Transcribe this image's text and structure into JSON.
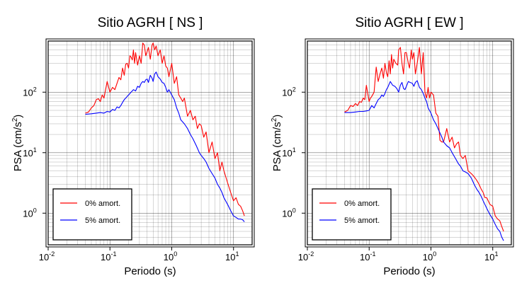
{
  "chart_data": [
    {
      "type": "line",
      "title": "Sitio AGRH [ NS ]",
      "xlabel": "Periodo (s)",
      "ylabel": "PSA (cm/s2)",
      "ylabel_main": "PSA (cm/s",
      "ylabel_sup": "2",
      "ylabel_close": ")",
      "xscale": "log",
      "yscale": "log",
      "xlim": [
        0.01,
        20
      ],
      "ylim": [
        0.3,
        700
      ],
      "xticks": [
        {
          "base": "10",
          "exp": "-2",
          "value": 0.01
        },
        {
          "base": "10",
          "exp": "-1",
          "value": 0.1
        },
        {
          "base": "10",
          "exp": "0",
          "value": 1
        },
        {
          "base": "10",
          "exp": "1",
          "value": 10
        }
      ],
      "yticks": [
        {
          "base": "10",
          "exp": "0",
          "value": 1
        },
        {
          "base": "10",
          "exp": "1",
          "value": 10
        },
        {
          "base": "10",
          "exp": "2",
          "value": 100
        }
      ],
      "grid": true,
      "legend_position": "bottom-left",
      "series": [
        {
          "name": "0% amort.",
          "color": "#ff0000",
          "x": [
            0.04,
            0.045,
            0.05,
            0.055,
            0.06,
            0.065,
            0.07,
            0.075,
            0.08,
            0.09,
            0.1,
            0.11,
            0.12,
            0.13,
            0.14,
            0.15,
            0.16,
            0.17,
            0.18,
            0.19,
            0.2,
            0.21,
            0.22,
            0.23,
            0.24,
            0.25,
            0.26,
            0.28,
            0.3,
            0.32,
            0.34,
            0.36,
            0.38,
            0.4,
            0.42,
            0.45,
            0.48,
            0.5,
            0.53,
            0.56,
            0.6,
            0.65,
            0.7,
            0.75,
            0.8,
            0.85,
            0.9,
            1.0,
            1.1,
            1.2,
            1.3,
            1.4,
            1.5,
            1.6,
            1.8,
            2.0,
            2.2,
            2.4,
            2.6,
            2.8,
            3.0,
            3.3,
            3.6,
            4.0,
            4.5,
            5.0,
            5.5,
            6.0,
            6.5,
            7.0,
            8.0,
            9.0,
            10.0,
            11.0,
            12.0,
            13.0,
            14.0,
            15.0
          ],
          "y": [
            45,
            47,
            55,
            60,
            75,
            78,
            70,
            90,
            80,
            150,
            100,
            120,
            110,
            140,
            175,
            160,
            250,
            190,
            290,
            300,
            250,
            400,
            380,
            340,
            500,
            300,
            450,
            280,
            400,
            300,
            650,
            600,
            400,
            470,
            550,
            350,
            600,
            650,
            500,
            580,
            400,
            500,
            300,
            400,
            270,
            250,
            180,
            300,
            140,
            180,
            90,
            80,
            70,
            80,
            40,
            50,
            35,
            40,
            25,
            30,
            28,
            18,
            22,
            10,
            15,
            8,
            10,
            5,
            7,
            5,
            3.2,
            2.2,
            1.6,
            1.8,
            1.4,
            1.3,
            1.1,
            0.9
          ]
        },
        {
          "name": "5% amort.",
          "color": "#0000ff",
          "x": [
            0.04,
            0.05,
            0.06,
            0.07,
            0.08,
            0.09,
            0.1,
            0.11,
            0.12,
            0.13,
            0.14,
            0.15,
            0.16,
            0.17,
            0.18,
            0.2,
            0.22,
            0.24,
            0.26,
            0.28,
            0.3,
            0.32,
            0.34,
            0.36,
            0.38,
            0.4,
            0.42,
            0.45,
            0.48,
            0.5,
            0.53,
            0.56,
            0.6,
            0.65,
            0.7,
            0.75,
            0.8,
            0.85,
            0.9,
            1.0,
            1.1,
            1.2,
            1.3,
            1.4,
            1.6,
            1.8,
            2.0,
            2.2,
            2.5,
            2.8,
            3.0,
            3.3,
            3.6,
            4.0,
            4.5,
            5.0,
            5.5,
            6.0,
            6.5,
            7.0,
            8.0,
            9.0,
            10.0,
            11.0,
            12.0,
            13.0,
            14.0,
            15.0
          ],
          "y": [
            43,
            44,
            45,
            46,
            45,
            48,
            47,
            52,
            50,
            57,
            55,
            60,
            68,
            75,
            80,
            90,
            100,
            110,
            105,
            125,
            120,
            140,
            150,
            145,
            160,
            165,
            145,
            190,
            170,
            150,
            200,
            215,
            180,
            165,
            145,
            140,
            120,
            100,
            110,
            90,
            75,
            55,
            45,
            35,
            30,
            25,
            20,
            17,
            13,
            10,
            9,
            8,
            7,
            5.5,
            4.5,
            3.8,
            3,
            2.6,
            2.2,
            1.8,
            1.4,
            1.1,
            0.9,
            0.85,
            0.8,
            0.8,
            0.78,
            0.72
          ]
        }
      ]
    },
    {
      "type": "line",
      "title": "Sitio AGRH [ EW ]",
      "xlabel": "Periodo (s)",
      "ylabel": "PSA (cm/s2)",
      "ylabel_main": "PSA (cm/s",
      "ylabel_sup": "2",
      "ylabel_close": ")",
      "xscale": "log",
      "yscale": "log",
      "xlim": [
        0.01,
        20
      ],
      "ylim": [
        0.3,
        700
      ],
      "xticks": [
        {
          "base": "10",
          "exp": "-2",
          "value": 0.01
        },
        {
          "base": "10",
          "exp": "-1",
          "value": 0.1
        },
        {
          "base": "10",
          "exp": "0",
          "value": 1
        },
        {
          "base": "10",
          "exp": "1",
          "value": 10
        }
      ],
      "yticks": [
        {
          "base": "10",
          "exp": "0",
          "value": 1
        },
        {
          "base": "10",
          "exp": "1",
          "value": 10
        },
        {
          "base": "10",
          "exp": "2",
          "value": 100
        }
      ],
      "grid": true,
      "legend_position": "bottom-left",
      "series": [
        {
          "name": "0% amort.",
          "color": "#ff0000",
          "x": [
            0.04,
            0.045,
            0.05,
            0.055,
            0.06,
            0.065,
            0.07,
            0.075,
            0.08,
            0.085,
            0.09,
            0.1,
            0.105,
            0.11,
            0.12,
            0.13,
            0.14,
            0.15,
            0.16,
            0.17,
            0.18,
            0.19,
            0.2,
            0.21,
            0.22,
            0.23,
            0.24,
            0.25,
            0.27,
            0.29,
            0.3,
            0.32,
            0.34,
            0.36,
            0.38,
            0.4,
            0.43,
            0.45,
            0.48,
            0.5,
            0.53,
            0.56,
            0.6,
            0.65,
            0.7,
            0.75,
            0.8,
            0.85,
            0.9,
            0.95,
            1.0,
            1.1,
            1.2,
            1.3,
            1.4,
            1.5,
            1.6,
            1.8,
            2.0,
            2.2,
            2.4,
            2.6,
            2.8,
            3.0,
            3.3,
            3.6,
            4.0,
            4.5,
            5.0,
            5.5,
            6.0,
            6.5,
            7.0,
            7.5,
            8.0,
            9.0,
            10.0,
            11.0,
            12.0,
            13.0,
            14.0,
            15.0
          ],
          "y": [
            47,
            50,
            60,
            58,
            65,
            60,
            70,
            68,
            80,
            75,
            130,
            70,
            80,
            85,
            100,
            260,
            150,
            200,
            250,
            170,
            300,
            210,
            180,
            330,
            200,
            420,
            250,
            350,
            300,
            280,
            500,
            550,
            300,
            200,
            450,
            450,
            300,
            250,
            500,
            350,
            450,
            200,
            300,
            550,
            200,
            450,
            100,
            80,
            120,
            80,
            100,
            90,
            45,
            40,
            16,
            15,
            15,
            25,
            15,
            18,
            12,
            14,
            15,
            9,
            8,
            9,
            5,
            4.5,
            4,
            3.5,
            3,
            2.5,
            2.2,
            1.8,
            1.8,
            1.4,
            1.3,
            0.9,
            0.8,
            0.75,
            0.6,
            0.5
          ]
        },
        {
          "name": "5% amort.",
          "color": "#0000ff",
          "x": [
            0.04,
            0.05,
            0.06,
            0.07,
            0.08,
            0.09,
            0.1,
            0.11,
            0.12,
            0.13,
            0.14,
            0.15,
            0.16,
            0.17,
            0.18,
            0.19,
            0.2,
            0.22,
            0.24,
            0.26,
            0.28,
            0.3,
            0.32,
            0.34,
            0.36,
            0.38,
            0.4,
            0.43,
            0.46,
            0.5,
            0.53,
            0.56,
            0.6,
            0.65,
            0.7,
            0.75,
            0.8,
            0.85,
            0.9,
            1.0,
            1.1,
            1.2,
            1.3,
            1.5,
            1.6,
            1.8,
            2.0,
            2.2,
            2.5,
            2.8,
            3.0,
            3.3,
            3.6,
            4.0,
            4.5,
            5.0,
            5.5,
            6.0,
            6.5,
            7.0,
            8.0,
            9.0,
            10.0,
            11.0,
            12.0,
            13.0,
            14.0,
            15.0
          ],
          "y": [
            46,
            46,
            47,
            48,
            48,
            49,
            50,
            60,
            55,
            65,
            75,
            80,
            90,
            85,
            95,
            110,
            120,
            150,
            130,
            125,
            115,
            100,
            130,
            145,
            115,
            110,
            125,
            150,
            145,
            140,
            125,
            145,
            155,
            120,
            110,
            95,
            80,
            70,
            55,
            45,
            35,
            30,
            25,
            18,
            15,
            13,
            12,
            10,
            8,
            6.5,
            6,
            5,
            4.8,
            4.5,
            3.8,
            3,
            2.5,
            2.2,
            1.9,
            1.6,
            1.2,
            0.95,
            0.8,
            0.65,
            0.55,
            0.5,
            0.4,
            0.35
          ]
        }
      ]
    }
  ]
}
